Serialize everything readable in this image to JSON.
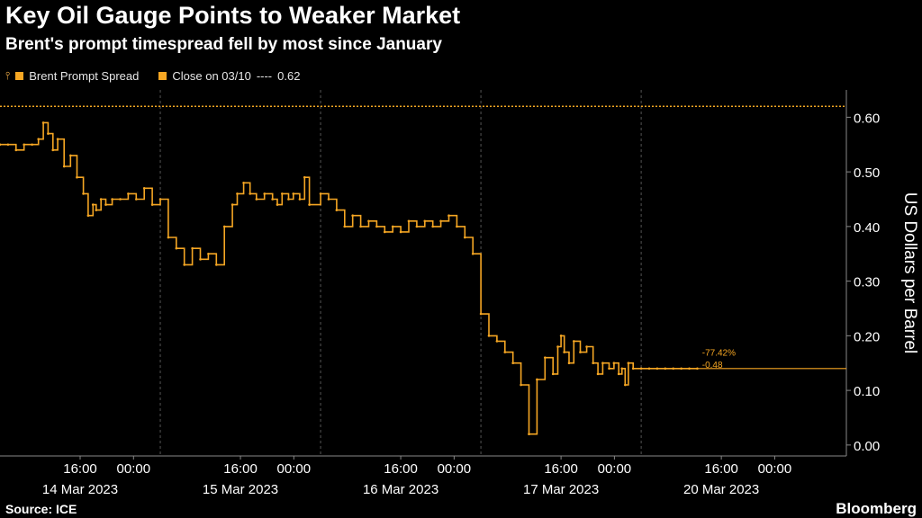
{
  "title": "Key Oil Gauge Points to Weaker Market",
  "subtitle": "Brent's prompt timespread fell by most since January",
  "legend": {
    "series_label": "Brent Prompt Spread",
    "close_label": "Close on 03/10",
    "close_dash": "----",
    "close_value": "0.62"
  },
  "source": "Source: ICE",
  "brand": "Bloomberg",
  "colors": {
    "series": "#f5a623",
    "background": "#000000",
    "axis": "#ffffff",
    "grid": "#555555"
  },
  "chart_data": {
    "type": "line",
    "ylabel": "US Dollars per Barrel",
    "ylim": [
      -0.02,
      0.65
    ],
    "yticks": [
      0.0,
      0.1,
      0.2,
      0.3,
      0.4,
      0.5,
      0.6
    ],
    "ytick_labels": [
      "0.00",
      "0.10",
      "0.20",
      "0.30",
      "0.40",
      "0.50",
      "0.60"
    ],
    "close_reference": 0.62,
    "annotations": {
      "change_pct": "-77.42%",
      "change_abs": "-0.48"
    },
    "last_value": 0.14,
    "x_ticks": [
      {
        "t": 0.5,
        "label": "16:00"
      },
      {
        "t": 0.833,
        "label": "00:00"
      },
      {
        "t": 1.5,
        "label": "16:00"
      },
      {
        "t": 1.833,
        "label": "00:00"
      },
      {
        "t": 2.5,
        "label": "16:00"
      },
      {
        "t": 2.833,
        "label": "00:00"
      },
      {
        "t": 3.5,
        "label": "16:00"
      },
      {
        "t": 3.833,
        "label": "00:00"
      },
      {
        "t": 4.5,
        "label": "16:00"
      },
      {
        "t": 4.833,
        "label": "00:00"
      }
    ],
    "date_labels": [
      {
        "t": 0.5,
        "label": "14 Mar 2023"
      },
      {
        "t": 1.5,
        "label": "15 Mar 2023"
      },
      {
        "t": 2.5,
        "label": "16 Mar 2023"
      },
      {
        "t": 3.5,
        "label": "17 Mar 2023"
      },
      {
        "t": 4.5,
        "label": "20 Mar 2023"
      }
    ],
    "day_separators": [
      1.0,
      2.0,
      3.0,
      4.0
    ],
    "series": [
      {
        "name": "Brent Prompt Spread",
        "x": [
          0.0,
          0.05,
          0.1,
          0.15,
          0.2,
          0.24,
          0.27,
          0.3,
          0.33,
          0.36,
          0.4,
          0.44,
          0.48,
          0.52,
          0.55,
          0.58,
          0.6,
          0.63,
          0.66,
          0.7,
          0.75,
          0.8,
          0.85,
          0.9,
          0.95,
          1.0,
          1.05,
          1.1,
          1.15,
          1.2,
          1.25,
          1.3,
          1.35,
          1.4,
          1.45,
          1.48,
          1.52,
          1.56,
          1.6,
          1.65,
          1.7,
          1.73,
          1.76,
          1.8,
          1.83,
          1.87,
          1.9,
          1.93,
          2.0,
          2.05,
          2.1,
          2.15,
          2.2,
          2.25,
          2.3,
          2.35,
          2.4,
          2.45,
          2.5,
          2.55,
          2.6,
          2.65,
          2.7,
          2.75,
          2.8,
          2.85,
          2.9,
          2.95,
          3.0,
          3.05,
          3.1,
          3.15,
          3.2,
          3.25,
          3.3,
          3.35,
          3.4,
          3.45,
          3.48,
          3.5,
          3.52,
          3.55,
          3.58,
          3.62,
          3.66,
          3.7,
          3.73,
          3.76,
          3.8,
          3.83,
          3.86,
          3.88,
          3.9,
          3.92,
          3.95,
          4.0,
          4.05,
          4.1,
          4.15,
          4.2,
          4.25,
          4.3,
          4.35
        ],
        "values": [
          0.55,
          0.55,
          0.54,
          0.55,
          0.55,
          0.56,
          0.59,
          0.57,
          0.54,
          0.56,
          0.51,
          0.53,
          0.49,
          0.46,
          0.42,
          0.44,
          0.43,
          0.45,
          0.44,
          0.45,
          0.45,
          0.46,
          0.45,
          0.47,
          0.44,
          0.45,
          0.38,
          0.36,
          0.33,
          0.36,
          0.34,
          0.35,
          0.33,
          0.4,
          0.44,
          0.46,
          0.48,
          0.46,
          0.45,
          0.46,
          0.45,
          0.44,
          0.46,
          0.45,
          0.46,
          0.45,
          0.49,
          0.44,
          0.46,
          0.45,
          0.43,
          0.4,
          0.42,
          0.4,
          0.41,
          0.4,
          0.39,
          0.4,
          0.39,
          0.41,
          0.4,
          0.41,
          0.4,
          0.41,
          0.42,
          0.4,
          0.38,
          0.35,
          0.24,
          0.2,
          0.19,
          0.17,
          0.15,
          0.11,
          0.02,
          0.12,
          0.16,
          0.13,
          0.18,
          0.2,
          0.17,
          0.15,
          0.19,
          0.17,
          0.18,
          0.15,
          0.13,
          0.15,
          0.14,
          0.15,
          0.13,
          0.14,
          0.11,
          0.15,
          0.14,
          0.14,
          0.14,
          0.14,
          0.14,
          0.14,
          0.14,
          0.14,
          0.14
        ]
      }
    ]
  }
}
